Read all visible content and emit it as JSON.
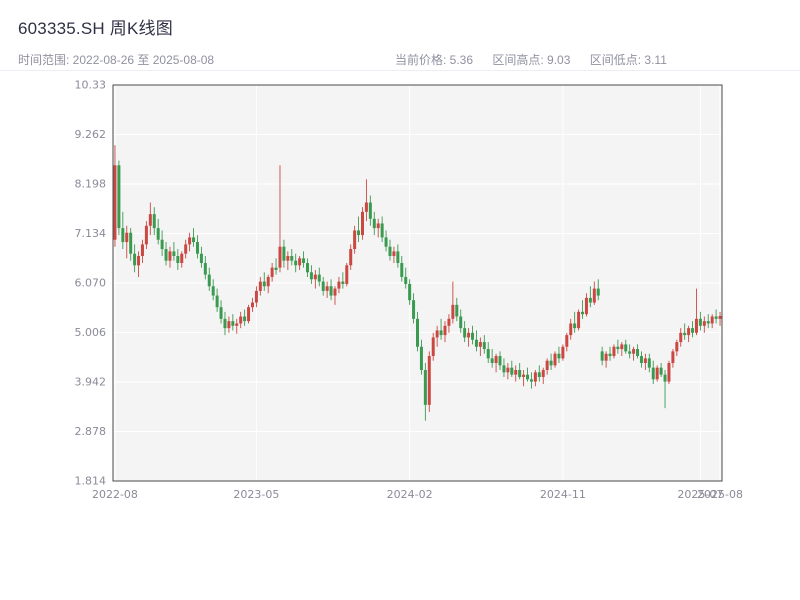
{
  "header": {
    "title": "603335.SH 周K线图",
    "time_range_label": "时间范围: 2022-08-26 至 2025-08-08",
    "stats": {
      "current": "当前价格: 5.36",
      "high": "区间高点: 9.03",
      "low": "区间低点: 3.11"
    }
  },
  "chart_data": {
    "type": "candlestick",
    "title": "603335.SH 周K线图",
    "symbol": "603335.SH",
    "freq": "weekly",
    "start_date": "2022-08-26",
    "end_date": "2025-08-08",
    "current_price": 5.36,
    "range_high": 9.03,
    "range_low": 3.11,
    "ylim": [
      1.814,
      10.326
    ],
    "y_ticks": [
      "1.814",
      "2.878",
      "3.942",
      "5.006",
      "6.070",
      "7.134",
      "8.198",
      "9.262",
      "10.33"
    ],
    "y_tick_values": [
      1.814,
      2.878,
      3.942,
      5.006,
      6.07,
      7.134,
      8.198,
      9.262,
      10.326
    ],
    "x_ticks": [
      {
        "label": "2022-08",
        "index": 0
      },
      {
        "label": "2023-05",
        "index": 36
      },
      {
        "label": "2024-02",
        "index": 75
      },
      {
        "label": "2024-11",
        "index": 114
      },
      {
        "label": "2025-07",
        "index": 149
      },
      {
        "label": "2025-08",
        "index": 154
      }
    ],
    "grid": true,
    "legend": false,
    "colors": {
      "up": "#cb4842",
      "down": "#3a9a50",
      "plot_bg": "#f4f4f5",
      "grid": "#ffffff",
      "border": "#4a4a4a",
      "tick_text": "#8b8b99"
    },
    "candles": [
      [
        7.0,
        9.03,
        6.85,
        8.6
      ],
      [
        8.6,
        8.7,
        7.1,
        7.25
      ],
      [
        7.25,
        7.6,
        6.8,
        6.95
      ],
      [
        6.95,
        7.3,
        6.6,
        7.15
      ],
      [
        7.15,
        7.25,
        6.55,
        6.7
      ],
      [
        6.7,
        6.9,
        6.3,
        6.45
      ],
      [
        6.45,
        6.75,
        6.2,
        6.65
      ],
      [
        6.65,
        7.0,
        6.5,
        6.9
      ],
      [
        6.9,
        7.4,
        6.8,
        7.3
      ],
      [
        7.3,
        7.8,
        7.1,
        7.55
      ],
      [
        7.55,
        7.7,
        7.1,
        7.25
      ],
      [
        7.25,
        7.45,
        6.9,
        7.0
      ],
      [
        7.0,
        7.2,
        6.65,
        6.8
      ],
      [
        6.8,
        6.95,
        6.45,
        6.55
      ],
      [
        6.55,
        6.85,
        6.4,
        6.75
      ],
      [
        6.75,
        6.95,
        6.55,
        6.65
      ],
      [
        6.65,
        6.8,
        6.35,
        6.5
      ],
      [
        6.5,
        6.75,
        6.4,
        6.7
      ],
      [
        6.7,
        7.0,
        6.6,
        6.9
      ],
      [
        6.9,
        7.15,
        6.75,
        7.05
      ],
      [
        7.05,
        7.25,
        6.85,
        6.95
      ],
      [
        6.95,
        7.1,
        6.6,
        6.7
      ],
      [
        6.7,
        6.85,
        6.4,
        6.5
      ],
      [
        6.5,
        6.65,
        6.15,
        6.25
      ],
      [
        6.25,
        6.4,
        5.9,
        6.0
      ],
      [
        6.0,
        6.15,
        5.7,
        5.8
      ],
      [
        5.8,
        5.95,
        5.45,
        5.55
      ],
      [
        5.55,
        5.7,
        5.2,
        5.3
      ],
      [
        5.3,
        5.45,
        4.95,
        5.1
      ],
      [
        5.1,
        5.35,
        5.0,
        5.25
      ],
      [
        5.25,
        5.4,
        5.05,
        5.15
      ],
      [
        5.15,
        5.3,
        4.98,
        5.2
      ],
      [
        5.2,
        5.45,
        5.1,
        5.35
      ],
      [
        5.35,
        5.5,
        5.15,
        5.25
      ],
      [
        5.25,
        5.6,
        5.2,
        5.55
      ],
      [
        5.55,
        5.75,
        5.45,
        5.65
      ],
      [
        5.65,
        6.0,
        5.55,
        5.9
      ],
      [
        5.9,
        6.2,
        5.8,
        6.1
      ],
      [
        6.1,
        6.3,
        5.9,
        6.0
      ],
      [
        6.0,
        6.25,
        5.85,
        6.2
      ],
      [
        6.2,
        6.5,
        6.1,
        6.4
      ],
      [
        6.4,
        6.6,
        6.25,
        6.35
      ],
      [
        6.4,
        8.6,
        6.3,
        6.85
      ],
      [
        6.85,
        7.0,
        6.4,
        6.55
      ],
      [
        6.55,
        6.75,
        6.35,
        6.65
      ],
      [
        6.65,
        6.8,
        6.45,
        6.55
      ],
      [
        6.55,
        6.7,
        6.3,
        6.45
      ],
      [
        6.45,
        6.65,
        6.35,
        6.6
      ],
      [
        6.6,
        6.75,
        6.4,
        6.5
      ],
      [
        6.5,
        6.6,
        6.2,
        6.3
      ],
      [
        6.3,
        6.45,
        6.05,
        6.15
      ],
      [
        6.15,
        6.35,
        5.95,
        6.25
      ],
      [
        6.25,
        6.4,
        6.0,
        6.1
      ],
      [
        6.1,
        6.2,
        5.8,
        5.9
      ],
      [
        5.9,
        6.1,
        5.75,
        6.0
      ],
      [
        6.0,
        6.15,
        5.7,
        5.8
      ],
      [
        5.8,
        6.0,
        5.6,
        5.95
      ],
      [
        5.95,
        6.2,
        5.85,
        6.1
      ],
      [
        6.1,
        6.3,
        5.95,
        6.05
      ],
      [
        6.05,
        6.5,
        6.0,
        6.45
      ],
      [
        6.45,
        6.9,
        6.35,
        6.8
      ],
      [
        6.8,
        7.3,
        6.7,
        7.2
      ],
      [
        7.2,
        7.5,
        6.95,
        7.1
      ],
      [
        7.1,
        7.7,
        7.0,
        7.6
      ],
      [
        7.6,
        8.3,
        7.4,
        7.8
      ],
      [
        7.8,
        7.95,
        7.3,
        7.45
      ],
      [
        7.45,
        7.6,
        7.1,
        7.25
      ],
      [
        7.25,
        7.45,
        7.05,
        7.35
      ],
      [
        7.35,
        7.5,
        6.95,
        7.05
      ],
      [
        7.05,
        7.2,
        6.75,
        6.85
      ],
      [
        6.85,
        7.0,
        6.55,
        6.65
      ],
      [
        6.65,
        6.85,
        6.5,
        6.75
      ],
      [
        6.75,
        6.9,
        6.4,
        6.5
      ],
      [
        6.5,
        6.65,
        6.1,
        6.2
      ],
      [
        6.2,
        6.4,
        5.95,
        6.05
      ],
      [
        6.05,
        6.15,
        5.6,
        5.7
      ],
      [
        5.7,
        5.85,
        5.2,
        5.3
      ],
      [
        5.3,
        5.45,
        4.6,
        4.7
      ],
      [
        4.7,
        4.85,
        4.1,
        4.2
      ],
      [
        4.2,
        4.35,
        3.11,
        3.45
      ],
      [
        3.45,
        4.6,
        3.3,
        4.5
      ],
      [
        4.5,
        5.0,
        4.4,
        4.9
      ],
      [
        4.9,
        5.15,
        4.7,
        5.05
      ],
      [
        5.05,
        5.3,
        4.85,
        4.95
      ],
      [
        4.95,
        5.25,
        4.8,
        5.15
      ],
      [
        5.15,
        5.4,
        5.0,
        5.3
      ],
      [
        5.3,
        6.1,
        5.2,
        5.6
      ],
      [
        5.6,
        5.75,
        5.25,
        5.35
      ],
      [
        5.35,
        5.5,
        5.0,
        5.1
      ],
      [
        5.1,
        5.25,
        4.8,
        4.9
      ],
      [
        4.9,
        5.1,
        4.7,
        5.0
      ],
      [
        5.0,
        5.15,
        4.75,
        4.85
      ],
      [
        4.85,
        5.05,
        4.6,
        4.7
      ],
      [
        4.7,
        4.9,
        4.5,
        4.8
      ],
      [
        4.8,
        4.95,
        4.55,
        4.65
      ],
      [
        4.65,
        4.8,
        4.35,
        4.45
      ],
      [
        4.45,
        4.65,
        4.25,
        4.35
      ],
      [
        4.35,
        4.55,
        4.15,
        4.5
      ],
      [
        4.5,
        4.6,
        4.2,
        4.3
      ],
      [
        4.3,
        4.45,
        4.05,
        4.15
      ],
      [
        4.15,
        4.35,
        4.0,
        4.25
      ],
      [
        4.25,
        4.4,
        4.05,
        4.1
      ],
      [
        4.1,
        4.3,
        3.95,
        4.2
      ],
      [
        4.2,
        4.35,
        4.0,
        4.05
      ],
      [
        4.05,
        4.2,
        3.85,
        4.1
      ],
      [
        4.1,
        4.25,
        3.95,
        4.0
      ],
      [
        4.0,
        4.15,
        3.8,
        3.95
      ],
      [
        3.95,
        4.2,
        3.85,
        4.15
      ],
      [
        4.15,
        4.3,
        3.95,
        4.05
      ],
      [
        4.05,
        4.25,
        3.9,
        4.2
      ],
      [
        4.2,
        4.45,
        4.1,
        4.4
      ],
      [
        4.4,
        4.55,
        4.2,
        4.3
      ],
      [
        4.3,
        4.6,
        4.25,
        4.55
      ],
      [
        4.55,
        4.7,
        4.35,
        4.45
      ],
      [
        4.45,
        4.75,
        4.4,
        4.7
      ],
      [
        4.7,
        5.0,
        4.6,
        4.95
      ],
      [
        4.95,
        5.3,
        4.85,
        5.2
      ],
      [
        5.2,
        5.45,
        5.0,
        5.1
      ],
      [
        5.1,
        5.5,
        5.05,
        5.45
      ],
      [
        5.45,
        5.7,
        5.3,
        5.4
      ],
      [
        5.4,
        5.85,
        5.35,
        5.75
      ],
      [
        5.75,
        6.0,
        5.55,
        5.65
      ],
      [
        5.65,
        6.1,
        5.6,
        5.95
      ],
      [
        5.95,
        6.15,
        5.7,
        5.8
      ],
      [
        4.6,
        4.7,
        4.3,
        4.4
      ],
      [
        4.4,
        4.6,
        4.25,
        4.55
      ],
      [
        4.55,
        4.7,
        4.4,
        4.5
      ],
      [
        4.5,
        4.75,
        4.45,
        4.7
      ],
      [
        4.7,
        4.85,
        4.55,
        4.65
      ],
      [
        4.65,
        4.8,
        4.5,
        4.75
      ],
      [
        4.75,
        4.85,
        4.55,
        4.6
      ],
      [
        4.6,
        4.75,
        4.45,
        4.55
      ],
      [
        4.55,
        4.7,
        4.4,
        4.65
      ],
      [
        4.65,
        4.75,
        4.45,
        4.5
      ],
      [
        4.5,
        4.6,
        4.25,
        4.35
      ],
      [
        4.35,
        4.55,
        4.2,
        4.45
      ],
      [
        4.45,
        4.55,
        4.15,
        4.25
      ],
      [
        4.25,
        4.4,
        3.9,
        4.0
      ],
      [
        4.0,
        4.3,
        3.95,
        4.25
      ],
      [
        4.25,
        4.35,
        4.05,
        4.1
      ],
      [
        4.1,
        4.2,
        3.38,
        3.95
      ],
      [
        3.95,
        4.4,
        3.9,
        4.35
      ],
      [
        4.35,
        4.65,
        4.25,
        4.6
      ],
      [
        4.6,
        4.85,
        4.5,
        4.8
      ],
      [
        4.8,
        5.1,
        4.7,
        5.0
      ],
      [
        5.0,
        5.2,
        4.85,
        4.95
      ],
      [
        4.95,
        5.15,
        4.8,
        5.1
      ],
      [
        5.1,
        5.25,
        4.9,
        5.0
      ],
      [
        5.0,
        5.95,
        4.95,
        5.3
      ],
      [
        5.3,
        5.45,
        5.05,
        5.15
      ],
      [
        5.15,
        5.35,
        5.0,
        5.25
      ],
      [
        5.25,
        5.4,
        5.1,
        5.2
      ],
      [
        5.2,
        5.4,
        5.1,
        5.35
      ],
      [
        5.35,
        5.5,
        5.2,
        5.3
      ],
      [
        5.3,
        5.45,
        5.15,
        5.36
      ]
    ]
  }
}
